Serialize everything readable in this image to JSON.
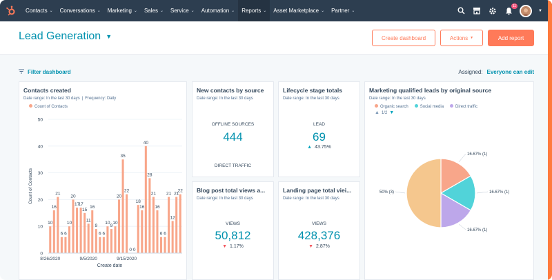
{
  "nav": {
    "items": [
      {
        "label": "Contacts",
        "active": false
      },
      {
        "label": "Conversations",
        "active": false
      },
      {
        "label": "Marketing",
        "active": false
      },
      {
        "label": "Sales",
        "active": false
      },
      {
        "label": "Service",
        "active": false
      },
      {
        "label": "Automation",
        "active": false
      },
      {
        "label": "Reports",
        "active": true
      },
      {
        "label": "Asset Marketplace",
        "active": false
      },
      {
        "label": "Partner",
        "active": false
      }
    ],
    "notification_count": "11"
  },
  "header": {
    "title": "Lead Generation",
    "create_dashboard": "Create dashboard",
    "actions": "Actions",
    "add_report": "Add report"
  },
  "filter": {
    "label": "Filter dashboard",
    "assigned_label": "Assigned:",
    "assigned_value": "Everyone can edit"
  },
  "cards": {
    "contacts": {
      "title": "Contacts created",
      "date_range": "Date range: In the last 30 days",
      "frequency": "Frequency: Daily",
      "legend": "Count of Contacts"
    },
    "new_contacts": {
      "title": "New contacts by source",
      "date_range": "Date range: In the last 30 days",
      "label1": "OFFLINE SOURCES",
      "value1": "444",
      "label2": "DIRECT TRAFFIC"
    },
    "lifecycle": {
      "title": "Lifecycle stage totals",
      "date_range": "Date range: In the last 30 days",
      "label": "LEAD",
      "value": "69",
      "change": "43.75%"
    },
    "mql": {
      "title": "Marketing qualified leads by original source",
      "date_range": "Date range: In the last 30 days",
      "legend": [
        "Organic search",
        "Social media",
        "Direct traffic"
      ],
      "pager": "1/2"
    },
    "blog": {
      "title": "Blog post total views a...",
      "date_range": "Date range: In the last 30 days",
      "label": "VIEWS",
      "value": "50,812",
      "change": "1.17%"
    },
    "landing": {
      "title": "Landing page total viei...",
      "date_range": "Date range: In the last 30 days",
      "label": "VIEWS",
      "value": "428,376",
      "change": "2.87%"
    }
  },
  "colors": {
    "bar": "#f8a68a",
    "organic": "#f8a68a",
    "social": "#51d3d9",
    "direct": "#bda7ea",
    "fourth": "#f5c78e"
  },
  "chart_data": [
    {
      "type": "bar",
      "title": "",
      "xlabel": "Create date",
      "ylabel": "Count of Contacts",
      "ylim": [
        0,
        50
      ],
      "yticks": [
        0,
        10,
        20,
        30,
        40,
        50
      ],
      "xtick_labels": [
        "8/26/2020",
        "9/5/2020",
        "9/15/2020"
      ],
      "series": [
        {
          "name": "Count of Contacts",
          "values": [
            10,
            16,
            21,
            6,
            6,
            10,
            20,
            17,
            17,
            15,
            11,
            16,
            9,
            6,
            6,
            10,
            9,
            10,
            20,
            35,
            22,
            0,
            0,
            18,
            16,
            40,
            28,
            21,
            16,
            6,
            6,
            21,
            12,
            21,
            22
          ]
        }
      ]
    },
    {
      "type": "pie",
      "title": "",
      "labels": [
        "Organic search",
        "Social media",
        "Direct traffic",
        ""
      ],
      "values": [
        16.67,
        16.67,
        16.67,
        50
      ],
      "value_labels": [
        "16.67% (1)",
        "16.67% (1)",
        "16.67% (1)",
        "50% (3)"
      ]
    }
  ]
}
